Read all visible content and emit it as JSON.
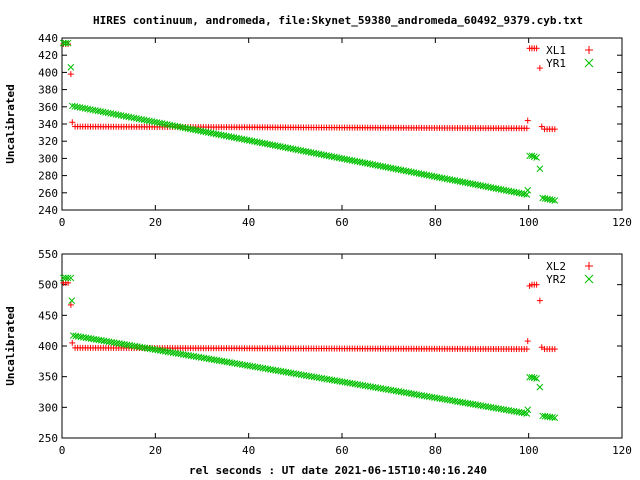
{
  "title": "HIRES continuum, andromeda, file:Skynet_59380_andromeda_60492_9379.cyb.txt",
  "xlabel": "rel seconds : UT date 2021-06-15T10:40:16.240",
  "colors": {
    "plus_series": "#ff0000",
    "cross_series": "#00c000",
    "axes": "#000000"
  },
  "chart_data": [
    {
      "type": "scatter",
      "ylabel": "Uncalibrated",
      "xlim": [
        0,
        120
      ],
      "ylim": [
        240,
        440
      ],
      "xticks": [
        0,
        20,
        40,
        60,
        80,
        100,
        120
      ],
      "yticks": [
        240,
        260,
        280,
        300,
        320,
        340,
        360,
        380,
        400,
        420,
        440
      ],
      "legend_position": "top-right",
      "series": [
        {
          "name": "XL1",
          "marker": "plus",
          "color": "#ff0000",
          "points": [
            [
              0.3,
              433
            ],
            [
              0.8,
              433
            ],
            [
              1.3,
              433
            ],
            [
              1.9,
              398
            ],
            [
              2.2,
              342
            ],
            {
              "range": [
                2.8,
                99.6
              ],
              "step": 0.55,
              "y_start": 337,
              "y_end": 335
            },
            [
              99.8,
              344
            ],
            [
              100.2,
              428
            ],
            [
              100.7,
              428
            ],
            [
              101.2,
              428
            ],
            [
              101.7,
              428
            ],
            [
              102.4,
              405
            ],
            [
              102.8,
              337
            ],
            {
              "range": [
                103.4,
                105.6
              ],
              "step": 0.55,
              "y_start": 334,
              "y_end": 334
            }
          ]
        },
        {
          "name": "YR1",
          "marker": "cross",
          "color": "#00c000",
          "points": [
            [
              0.3,
              434
            ],
            [
              0.8,
              434
            ],
            [
              1.3,
              434
            ],
            [
              1.9,
              406
            ],
            {
              "range": [
                2.2,
                99.6
              ],
              "step": 0.55,
              "y_start": 361,
              "y_end": 258
            },
            [
              99.8,
              263
            ],
            [
              100.2,
              303
            ],
            [
              100.7,
              303
            ],
            [
              101.2,
              302
            ],
            [
              101.7,
              301
            ],
            [
              102.4,
              288
            ],
            {
              "range": [
                103.0,
                105.6
              ],
              "step": 0.55,
              "y_start": 254,
              "y_end": 251
            }
          ]
        }
      ]
    },
    {
      "type": "scatter",
      "ylabel": "Uncalibrated",
      "xlim": [
        0,
        120
      ],
      "ylim": [
        250,
        550
      ],
      "xticks": [
        0,
        20,
        40,
        60,
        80,
        100,
        120
      ],
      "yticks": [
        250,
        300,
        350,
        400,
        450,
        500,
        550
      ],
      "legend_position": "top-right",
      "series": [
        {
          "name": "XL2",
          "marker": "plus",
          "color": "#ff0000",
          "points": [
            [
              0.3,
              503
            ],
            [
              0.8,
              503
            ],
            [
              1.3,
              503
            ],
            [
              1.9,
              467
            ],
            [
              2.2,
              405
            ],
            {
              "range": [
                2.8,
                99.6
              ],
              "step": 0.55,
              "y_start": 397,
              "y_end": 395
            },
            [
              99.8,
              408
            ],
            [
              100.2,
              498
            ],
            [
              100.7,
              500
            ],
            [
              101.2,
              500
            ],
            [
              101.7,
              500
            ],
            [
              102.4,
              474
            ],
            [
              102.8,
              398
            ],
            {
              "range": [
                103.4,
                105.6
              ],
              "step": 0.55,
              "y_start": 395,
              "y_end": 395
            }
          ]
        },
        {
          "name": "YR2",
          "marker": "cross",
          "color": "#00c000",
          "points": [
            [
              0.3,
              511
            ],
            [
              0.8,
              511
            ],
            [
              1.3,
              511
            ],
            [
              1.9,
              511
            ],
            [
              2.1,
              474
            ],
            {
              "range": [
                2.4,
                99.6
              ],
              "step": 0.55,
              "y_start": 417,
              "y_end": 290
            },
            [
              99.8,
              296
            ],
            [
              100.2,
              349
            ],
            [
              100.7,
              349
            ],
            [
              101.2,
              348
            ],
            [
              101.7,
              347
            ],
            [
              102.4,
              333
            ],
            {
              "range": [
                103.0,
                105.6
              ],
              "step": 0.55,
              "y_start": 286,
              "y_end": 283
            }
          ]
        }
      ]
    }
  ]
}
